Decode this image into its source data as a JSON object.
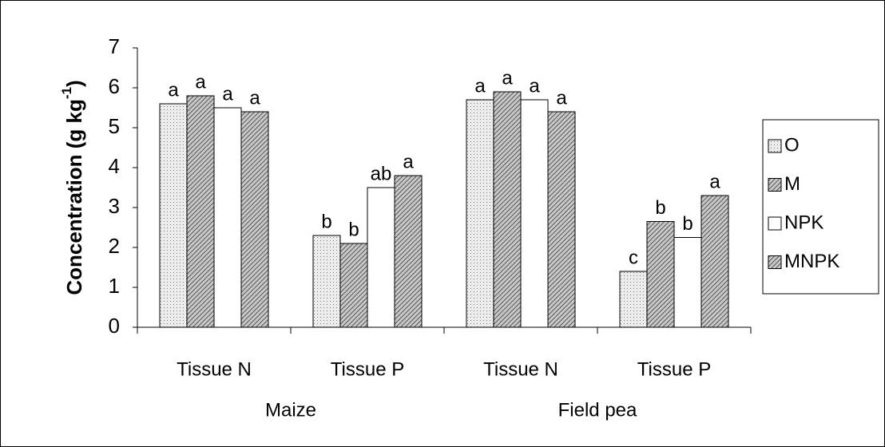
{
  "chart_data": {
    "type": "bar",
    "ylabel": "Concentration (g kg",
    "ylabel_sup": "-1",
    "ylabel_end": ")",
    "groups": [
      {
        "name": "Maize",
        "categories": [
          "Tissue N",
          "Tissue P"
        ]
      },
      {
        "name": "Field pea",
        "categories": [
          "Tissue N",
          "Tissue P"
        ]
      }
    ],
    "series": [
      {
        "name": "O",
        "color": "#e6e6e6",
        "pattern": "dots",
        "values": [
          5.6,
          2.3,
          5.7,
          1.4
        ],
        "letters": [
          "a",
          "b",
          "a",
          "c"
        ]
      },
      {
        "name": "M",
        "color": "#9a9a9a",
        "pattern": "hatch",
        "values": [
          5.8,
          2.1,
          5.9,
          2.65
        ],
        "letters": [
          "a",
          "b",
          "a",
          "b"
        ]
      },
      {
        "name": "NPK",
        "color": "#ffffff",
        "pattern": "none",
        "values": [
          5.5,
          3.5,
          5.7,
          2.25
        ],
        "letters": [
          "a",
          "ab",
          "a",
          "b"
        ]
      },
      {
        "name": "MNPK",
        "color": "#a8a8a8",
        "pattern": "hatch",
        "values": [
          5.4,
          3.8,
          5.4,
          3.3
        ],
        "letters": [
          "a",
          "a",
          "a",
          "a"
        ]
      }
    ],
    "ylim": [
      0,
      7
    ],
    "yticks": [
      0,
      1,
      2,
      3,
      4,
      5,
      6,
      7
    ],
    "grid": false,
    "legend": "right"
  }
}
